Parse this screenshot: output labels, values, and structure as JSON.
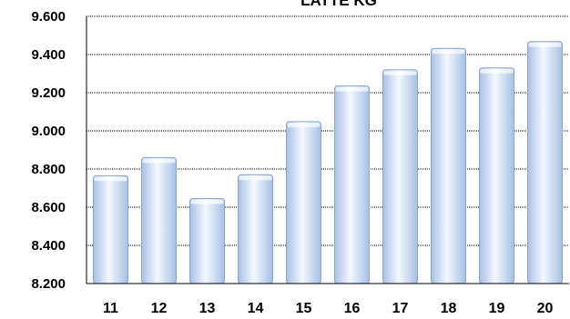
{
  "chart_data": {
    "type": "bar",
    "title": "LATTE KG",
    "xlabel": "",
    "ylabel": "",
    "categories": [
      "11",
      "12",
      "13",
      "14",
      "15",
      "16",
      "17",
      "18",
      "19",
      "20"
    ],
    "values": [
      8765,
      8860,
      8645,
      8770,
      9048,
      9235,
      9320,
      9432,
      9330,
      9468
    ],
    "ylim": [
      8200,
      9600
    ],
    "yticks": [
      "8.200",
      "8.400",
      "8.600",
      "8.800",
      "9.000",
      "9.200",
      "9.400",
      "9.600"
    ],
    "grid": true,
    "legend": "none",
    "colors": {
      "bar_light": "#f3f8ff",
      "bar_mid": "#d5e4f7",
      "bar_dark": "#a7c0e4",
      "bar_stroke": "#8aa6cf",
      "grid": "#000000"
    }
  }
}
